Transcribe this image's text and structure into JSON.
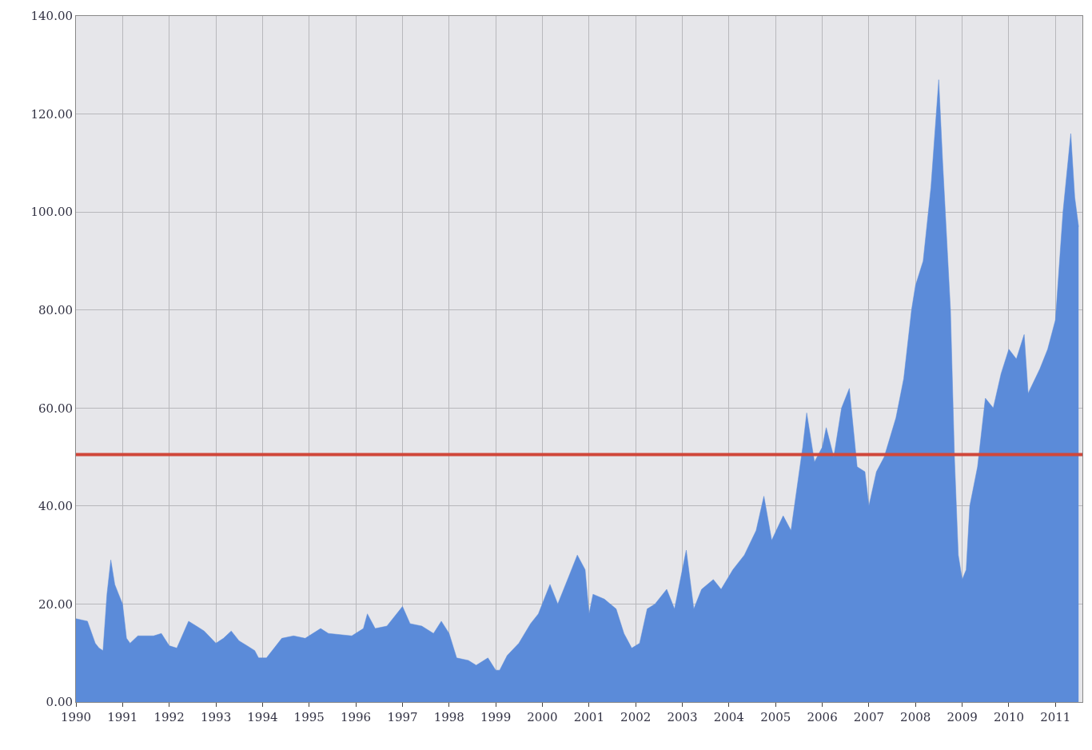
{
  "chart_data": {
    "type": "area",
    "x": [
      "1990-01",
      "1990-04",
      "1990-06",
      "1990-07",
      "1990-08",
      "1990-09",
      "1990-10",
      "1990-11",
      "1990-12",
      "1991-01",
      "1991-02",
      "1991-03",
      "1991-05",
      "1991-09",
      "1991-11",
      "1992-01",
      "1992-03",
      "1992-06",
      "1992-08",
      "1992-10",
      "1993-01",
      "1993-03",
      "1993-05",
      "1993-07",
      "1993-09",
      "1993-11",
      "1993-12",
      "1994-02",
      "1994-06",
      "1994-09",
      "1994-12",
      "1995-04",
      "1995-06",
      "1995-12",
      "1996-03",
      "1996-04",
      "1996-06",
      "1996-09",
      "1996-11",
      "1997-01",
      "1997-03",
      "1997-06",
      "1997-09",
      "1997-11",
      "1998-01",
      "1998-03",
      "1998-06",
      "1998-08",
      "1998-11",
      "1999-01",
      "1999-02",
      "1999-04",
      "1999-07",
      "1999-10",
      "1999-12",
      "2000-03",
      "2000-05",
      "2000-08",
      "2000-10",
      "2000-12",
      "2001-01",
      "2001-02",
      "2001-05",
      "2001-08",
      "2001-10",
      "2001-12",
      "2002-02",
      "2002-04",
      "2002-06",
      "2002-09",
      "2002-11",
      "2003-02",
      "2003-04",
      "2003-06",
      "2003-09",
      "2003-11",
      "2004-02",
      "2004-05",
      "2004-08",
      "2004-10",
      "2004-12",
      "2005-03",
      "2005-05",
      "2005-08",
      "2005-09",
      "2005-11",
      "2006-01",
      "2006-02",
      "2006-04",
      "2006-06",
      "2006-08",
      "2006-10",
      "2006-12",
      "2007-01",
      "2007-03",
      "2007-05",
      "2007-08",
      "2007-10",
      "2007-12",
      "2008-01",
      "2008-03",
      "2008-05",
      "2008-07",
      "2008-08",
      "2008-10",
      "2008-11",
      "2008-12",
      "2009-01",
      "2009-02",
      "2009-03",
      "2009-05",
      "2009-07",
      "2009-09",
      "2009-11",
      "2010-01",
      "2010-03",
      "2010-05",
      "2010-06",
      "2010-09",
      "2010-11",
      "2011-01",
      "2011-03",
      "2011-05",
      "2011-06",
      "2011-07"
    ],
    "series": [
      {
        "color": "#5b8bd9",
        "values": [
          17,
          16.5,
          12,
          11,
          10.5,
          22,
          29,
          24,
          22,
          20,
          13,
          12,
          13.5,
          13.5,
          14,
          11.5,
          11,
          16.5,
          15.5,
          14.5,
          12,
          13,
          14.5,
          12.5,
          11.5,
          10.5,
          9,
          9,
          13,
          13.5,
          13,
          15,
          14,
          13.5,
          15,
          18,
          15,
          15.5,
          17.5,
          19.5,
          16,
          15.5,
          14,
          16.5,
          14,
          9,
          8.5,
          7.5,
          9,
          6.5,
          6.5,
          9.5,
          12,
          16,
          18,
          24,
          20,
          26,
          30,
          27,
          18,
          22,
          21,
          19,
          14,
          11,
          12,
          19,
          20,
          23,
          19,
          31,
          19,
          23,
          25,
          23,
          27,
          30,
          35,
          42,
          33,
          38,
          35,
          52,
          59,
          49,
          52,
          56,
          50,
          60,
          64,
          48,
          47,
          40,
          47,
          50,
          58,
          66,
          80,
          85,
          90,
          105,
          127,
          110,
          80,
          50,
          30,
          25,
          27,
          40,
          48,
          62,
          60,
          67,
          72,
          70,
          75,
          63,
          68,
          72,
          78,
          100,
          116,
          103,
          97
        ]
      }
    ],
    "xlim": [
      "1990-01-01",
      "2011-07-31"
    ],
    "xticks": [
      "1990",
      "1991",
      "1992",
      "1993",
      "1994",
      "1995",
      "1996",
      "1997",
      "1998",
      "1999",
      "2000",
      "2001",
      "2002",
      "2003",
      "2004",
      "2005",
      "2006",
      "2007",
      "2008",
      "2009",
      "2010",
      "2011"
    ],
    "ylim": [
      0,
      140
    ],
    "yticks": [
      {
        "value": 0,
        "label": "0.00"
      },
      {
        "value": 20,
        "label": "20.00"
      },
      {
        "value": 40,
        "label": "40.00"
      },
      {
        "value": 60,
        "label": "60.00"
      },
      {
        "value": 80,
        "label": "80.00"
      },
      {
        "value": 100,
        "label": "100.00"
      },
      {
        "value": 120,
        "label": "120.00"
      },
      {
        "value": 140,
        "label": "140.00"
      }
    ],
    "ref_lines": [
      {
        "axis": "y",
        "value": 50.5,
        "color": "#d0473a",
        "line_style": "solid"
      }
    ],
    "grid": true
  }
}
